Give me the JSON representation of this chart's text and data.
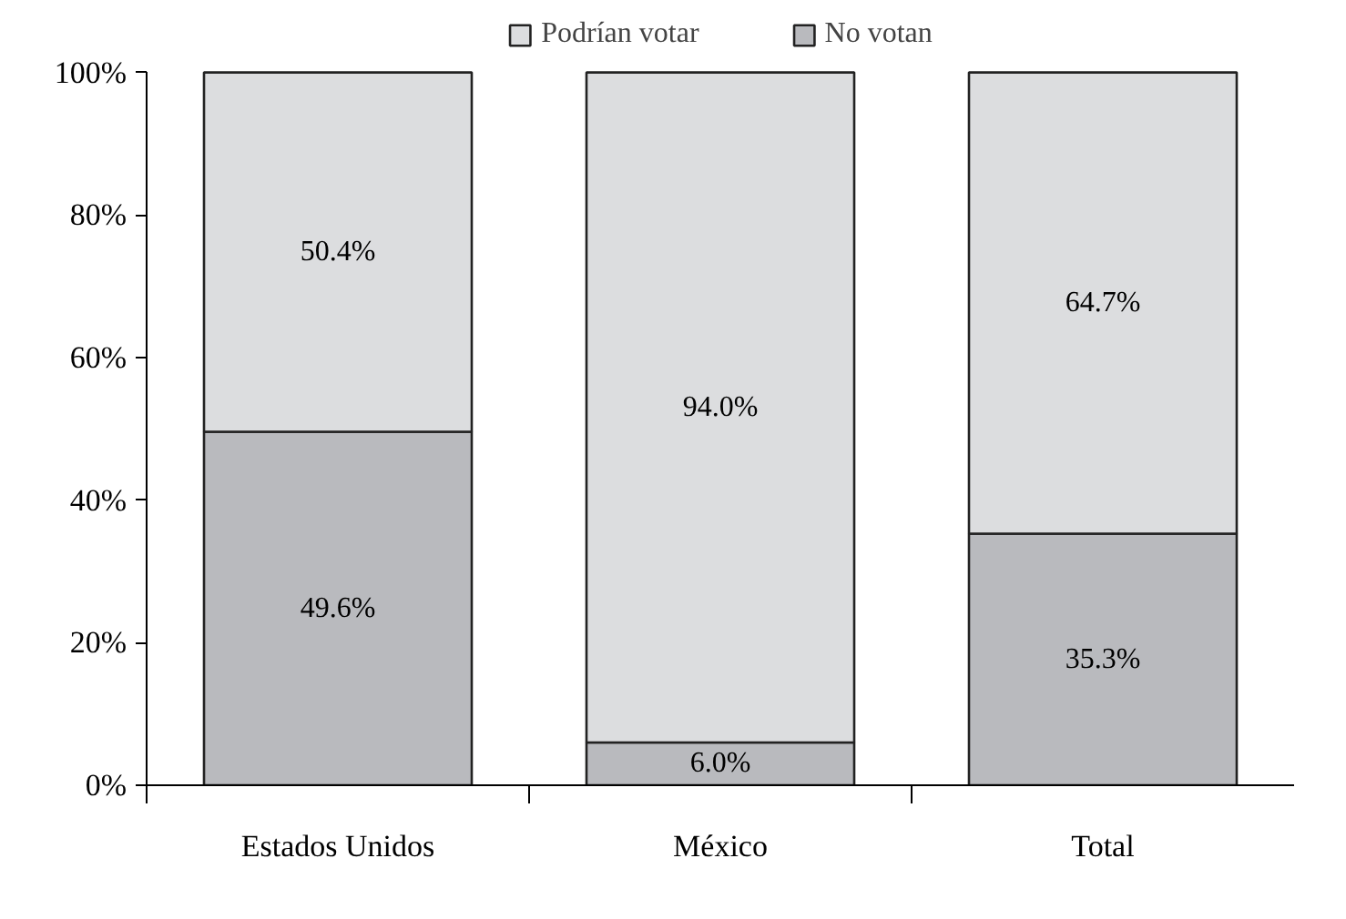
{
  "chart_data": {
    "type": "bar",
    "stacked": true,
    "categories": [
      "Estados Unidos",
      "México",
      "Total"
    ],
    "series": [
      {
        "name": "No votan",
        "color": "#b9babe",
        "values": [
          49.6,
          6.0,
          35.3
        ],
        "value_labels": [
          "49.6%",
          "6.0%",
          "35.3%"
        ]
      },
      {
        "name": "Podrían votar",
        "color": "#dcdddf",
        "values": [
          50.4,
          94.0,
          64.7
        ],
        "value_labels": [
          "50.4%",
          "94.0%",
          "64.7%"
        ]
      }
    ],
    "ylim": [
      0,
      100
    ],
    "yticks": [
      {
        "value": 0,
        "label": "0%"
      },
      {
        "value": 20,
        "label": "20%"
      },
      {
        "value": 40,
        "label": "40%"
      },
      {
        "value": 60,
        "label": "60%"
      },
      {
        "value": 80,
        "label": "80%"
      },
      {
        "value": 100,
        "label": "100%"
      }
    ],
    "grid": false,
    "legend": "top"
  }
}
